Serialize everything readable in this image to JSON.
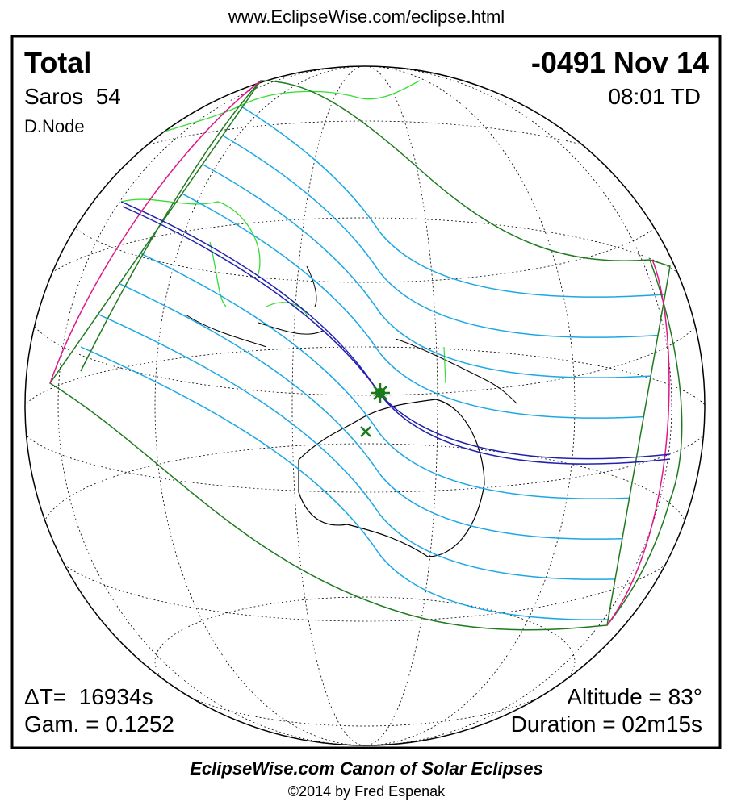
{
  "header": {
    "url": "www.EclipseWise.com/eclipse.html"
  },
  "panel": {
    "eclipse_type": "Total",
    "saros": "Saros  54",
    "node": "D.Node",
    "date": "-0491 Nov 14",
    "time": "08:01 TD",
    "delta_t": "ΔT=  16934s",
    "gamma": "Gam. = 0.1252",
    "altitude": "Altitude = 83°",
    "duration": "Duration = 02m15s"
  },
  "footer": {
    "title": "EclipseWise.com Canon of Solar Eclipses",
    "copyright": "©2014 by Fred Espenak"
  }
}
